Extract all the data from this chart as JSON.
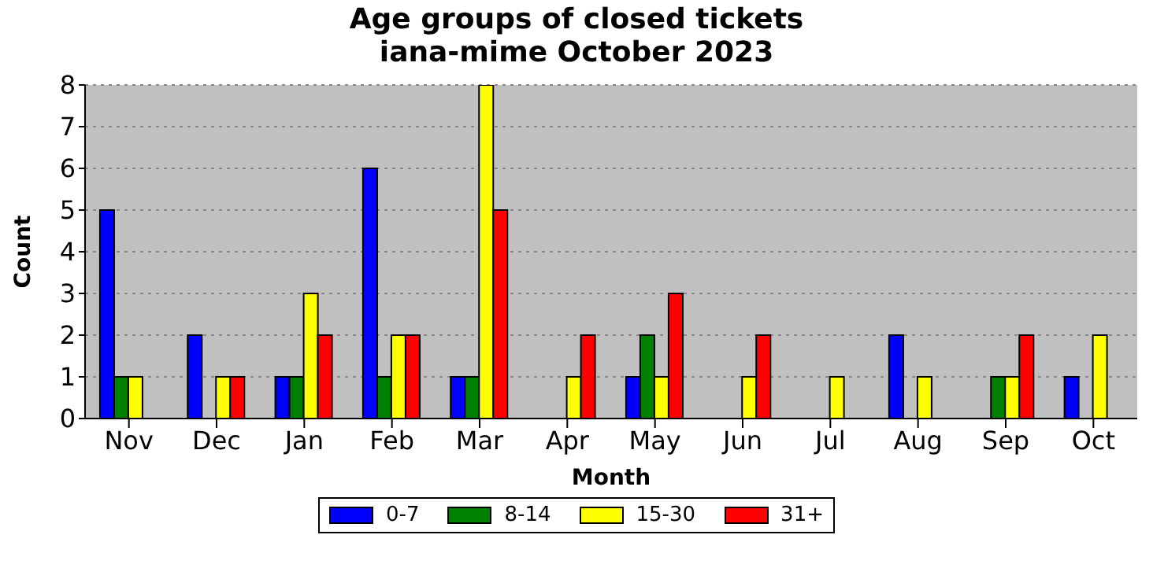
{
  "chart_data": {
    "type": "bar",
    "title": "Age groups of closed tickets\niana-mime October 2023",
    "xlabel": "Month",
    "ylabel": "Count",
    "categories": [
      "Nov",
      "Dec",
      "Jan",
      "Feb",
      "Mar",
      "Apr",
      "May",
      "Jun",
      "Jul",
      "Aug",
      "Sep",
      "Oct"
    ],
    "series": [
      {
        "name": "0-7",
        "color": "#0000ff",
        "values": [
          5,
          2,
          1,
          6,
          1,
          0,
          1,
          0,
          0,
          2,
          0,
          1
        ]
      },
      {
        "name": "8-14",
        "color": "#008000",
        "values": [
          1,
          0,
          1,
          1,
          1,
          0,
          2,
          0,
          0,
          0,
          1,
          0
        ]
      },
      {
        "name": "15-30",
        "color": "#ffff00",
        "values": [
          1,
          1,
          3,
          2,
          8,
          1,
          1,
          1,
          1,
          1,
          1,
          2
        ]
      },
      {
        "name": "31+",
        "color": "#ff0000",
        "values": [
          0,
          1,
          2,
          2,
          5,
          2,
          3,
          2,
          0,
          0,
          2,
          0
        ]
      }
    ],
    "ylim": [
      0,
      8
    ],
    "yticks": [
      0,
      1,
      2,
      3,
      4,
      5,
      6,
      7,
      8
    ],
    "grid": "y",
    "legend": "bottom"
  }
}
